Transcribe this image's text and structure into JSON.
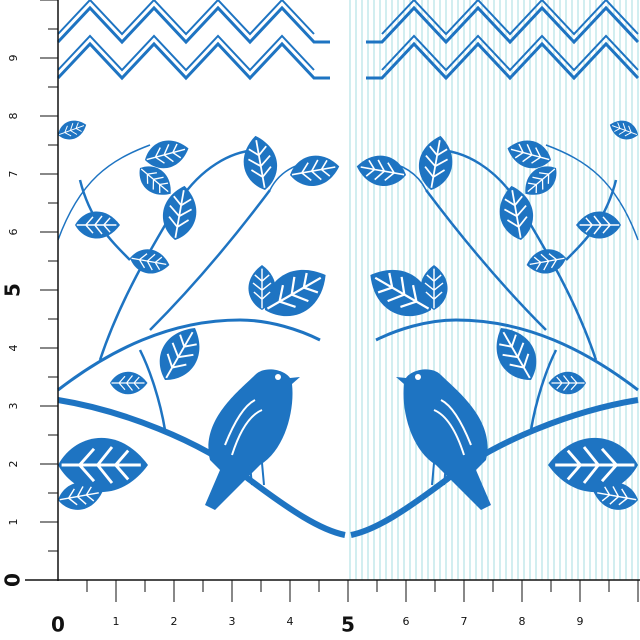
{
  "ruler": {
    "left_labels": [
      "0",
      "1",
      "2",
      "3",
      "4",
      "5",
      "6",
      "7",
      "8",
      "9"
    ],
    "bottom_labels": [
      "0",
      "1",
      "2",
      "3",
      "4",
      "5",
      "6",
      "7",
      "8",
      "9"
    ]
  }
}
